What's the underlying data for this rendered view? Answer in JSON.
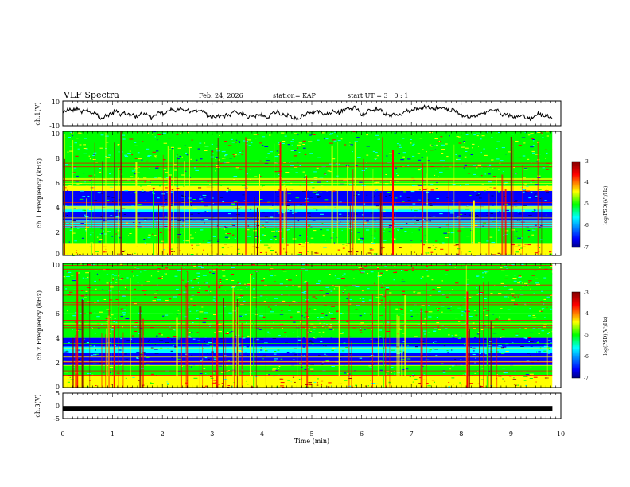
{
  "header": {
    "title": "VLF Spectra",
    "date": "Feb. 24, 2026",
    "station": "station= KAP",
    "start": "start UT = 3 : 0 : 1"
  },
  "colorbar": {
    "label": "log(PSD)(V²/Hz)",
    "ticks": [
      "-3",
      "-4",
      "-5",
      "-6",
      "-7"
    ],
    "range": [
      -7,
      -3
    ],
    "colors": [
      "#000080",
      "#0000ff",
      "#00ffff",
      "#00ff00",
      "#ffff00",
      "#ff0000",
      "#800000"
    ]
  },
  "chart_data": [
    {
      "type": "line",
      "name": "ch1-waveform",
      "ylabel": "ch.1(V)",
      "ylim": [
        -10,
        10
      ],
      "ytick_labels": [
        "10",
        "-10"
      ],
      "xlim": [
        0,
        9.83
      ],
      "note": "noisy waveform fluctuating roughly between -5 and +6 V"
    },
    {
      "type": "heatmap",
      "name": "ch1-spectrogram",
      "ylabel": "ch.1 Frequency (kHz)",
      "ylim": [
        0,
        10
      ],
      "ytick_labels": [
        "0",
        "2",
        "4",
        "6",
        "8",
        "10"
      ],
      "xlim": [
        0,
        9.83
      ],
      "bands": [
        {
          "f0": 0.0,
          "f1": 1.0,
          "level": -4.2
        },
        {
          "f0": 1.0,
          "f1": 2.2,
          "level": -5.1
        },
        {
          "f0": 2.2,
          "f1": 2.8,
          "level": -5.5
        },
        {
          "f0": 2.8,
          "f1": 3.5,
          "level": -6.3
        },
        {
          "f0": 3.5,
          "f1": 4.0,
          "level": -5.4
        },
        {
          "f0": 4.0,
          "f1": 5.2,
          "level": -6.1
        },
        {
          "f0": 5.2,
          "f1": 5.6,
          "level": -4.6
        },
        {
          "f0": 5.6,
          "f1": 10.0,
          "level": -5.0
        }
      ]
    },
    {
      "type": "heatmap",
      "name": "ch2-spectrogram",
      "ylabel": "ch.2 Frequency (kHz)",
      "ylim": [
        0,
        10
      ],
      "ytick_labels": [
        "0",
        "2",
        "4",
        "6",
        "8",
        "10"
      ],
      "xlim": [
        0,
        9.83
      ],
      "bands": [
        {
          "f0": 0.0,
          "f1": 1.0,
          "level": -4.4
        },
        {
          "f0": 1.0,
          "f1": 1.8,
          "level": -5.2
        },
        {
          "f0": 1.8,
          "f1": 2.8,
          "level": -5.9
        },
        {
          "f0": 2.8,
          "f1": 3.3,
          "level": -5.6
        },
        {
          "f0": 3.3,
          "f1": 4.0,
          "level": -6.2
        },
        {
          "f0": 4.0,
          "f1": 6.0,
          "level": -5.0
        },
        {
          "f0": 6.0,
          "f1": 10.0,
          "level": -4.8
        }
      ]
    },
    {
      "type": "line",
      "name": "ch3-waveform",
      "ylabel": "ch.3(V)",
      "ylim": [
        -5,
        5
      ],
      "ytick_labels": [
        "5",
        "0",
        "-5"
      ],
      "xlim": [
        0,
        9.83
      ],
      "value": -1
    }
  ],
  "xaxis": {
    "label": "Time (min)",
    "ticks": [
      "0",
      "1",
      "2",
      "3",
      "4",
      "5",
      "6",
      "7",
      "8",
      "9",
      "10"
    ],
    "range": [
      0,
      10
    ]
  }
}
